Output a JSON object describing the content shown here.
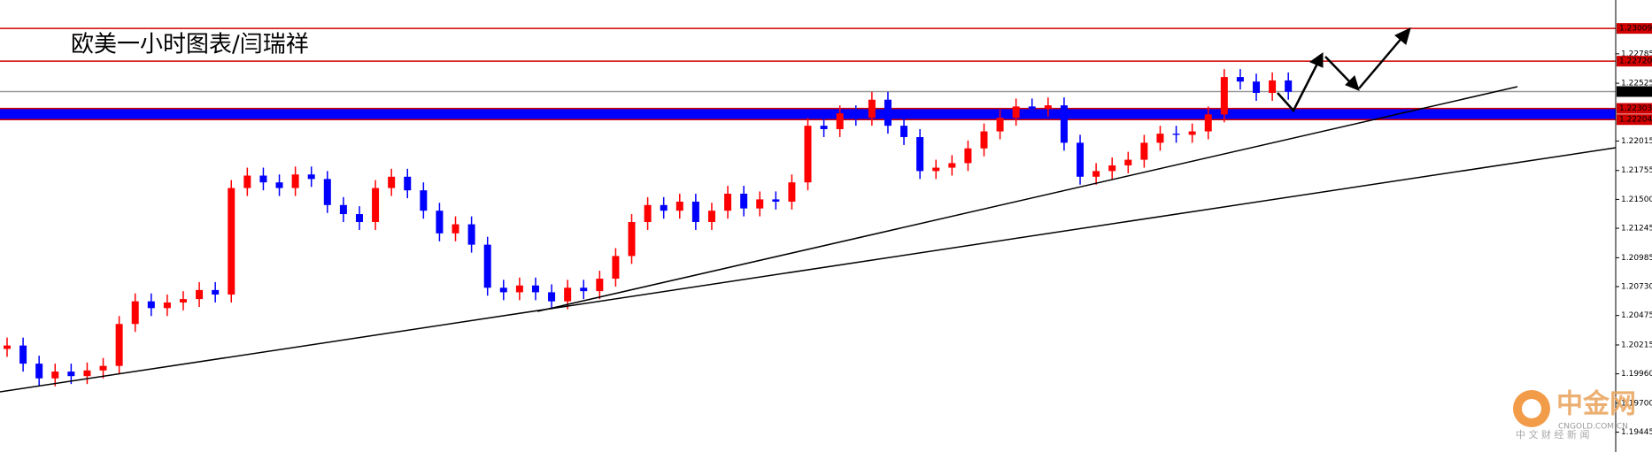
{
  "chart_data": {
    "type": "candlestick",
    "title": "欧美一小时图表/闫瑞祥",
    "up_color": "#ff0000",
    "down_color": "#0000ff",
    "zone_color": "#0000ff",
    "ylim": [
      1.1927,
      1.2326
    ],
    "yticks": [
      1.22785,
      1.22525,
      1.22015,
      1.21755,
      {
        "value": 1.215,
        "label": "1.21500"
      },
      1.21245,
      1.20985,
      {
        "value": 1.2073,
        "label": "1.20730"
      },
      1.20475,
      1.20215,
      {
        "value": 1.1996,
        "label": "1.19960"
      },
      {
        "value": 1.197,
        "label": "1.19700"
      },
      1.19445
    ],
    "levels": [
      {
        "value": 1.23009,
        "color": "#d00000"
      },
      {
        "value": 1.2272,
        "label": "1.22720",
        "color": "#d00000"
      },
      {
        "value": 1.22452,
        "color": "#000000"
      },
      {
        "value": 1.22303,
        "color": "#d00000"
      },
      {
        "value": 1.22204,
        "color": "#d00000"
      }
    ],
    "open": [
      1.2018,
      1.2021,
      1.2005,
      1.1992,
      1.1998,
      1.1994,
      1.1999,
      1.2003,
      1.204,
      1.206,
      1.2054,
      1.2059,
      1.2062,
      1.207,
      1.2066,
      1.216,
      1.2171,
      1.2165,
      1.216,
      1.2172,
      1.2168,
      1.2145,
      1.2137,
      1.213,
      1.216,
      1.217,
      1.2158,
      1.214,
      1.212,
      1.2128,
      1.211,
      1.2072,
      1.2068,
      1.2074,
      1.2068,
      1.206,
      1.2072,
      1.2069,
      1.208,
      1.21,
      1.213,
      1.2145,
      1.214,
      1.2148,
      1.213,
      1.214,
      1.2155,
      1.2142,
      1.215,
      1.2148,
      1.2165,
      1.2215,
      1.2212,
      1.2226,
      1.2222,
      1.2238,
      1.2215,
      1.2205,
      1.2175,
      1.2178,
      1.2182,
      1.2195,
      1.221,
      1.2222,
      1.2232,
      1.223,
      1.2233,
      1.22,
      1.217,
      1.2175,
      1.218,
      1.2185,
      1.22,
      1.2208,
      1.2207,
      1.221,
      1.2225,
      1.2258,
      1.2254,
      1.2244,
      1.2255
    ],
    "high": [
      1.2028,
      1.2028,
      1.2012,
      1.2005,
      1.2005,
      1.2006,
      1.201,
      1.2047,
      1.2067,
      1.2067,
      1.2066,
      1.2069,
      1.2077,
      1.2077,
      1.2167,
      1.2178,
      1.2178,
      1.2172,
      1.2179,
      1.2179,
      1.2175,
      1.2152,
      1.2144,
      1.2167,
      1.2177,
      1.2177,
      1.2165,
      1.2147,
      1.2135,
      1.2135,
      1.2117,
      1.2079,
      1.2081,
      1.2081,
      1.2075,
      1.2079,
      1.2079,
      1.2087,
      1.2107,
      1.2137,
      1.2152,
      1.2152,
      1.2155,
      1.2155,
      1.2147,
      1.2162,
      1.2162,
      1.2157,
      1.2157,
      1.2172,
      1.2222,
      1.2222,
      1.2233,
      1.2233,
      1.2245,
      1.2245,
      1.2222,
      1.2212,
      1.2185,
      1.2189,
      1.2202,
      1.2217,
      1.2229,
      1.2239,
      1.2239,
      1.224,
      1.224,
      1.2207,
      1.2182,
      1.2187,
      1.2192,
      1.2207,
      1.2215,
      1.2215,
      1.2217,
      1.2232,
      1.2265,
      1.2265,
      1.2261,
      1.2262,
      1.2262
    ],
    "low": [
      1.2011,
      1.1998,
      1.1985,
      1.1985,
      1.1987,
      1.1987,
      1.1992,
      1.1996,
      1.2033,
      1.2047,
      1.2047,
      1.2052,
      1.2055,
      1.2059,
      1.2059,
      1.2153,
      1.2158,
      1.2153,
      1.2153,
      1.2161,
      1.2138,
      1.213,
      1.2123,
      1.2123,
      1.2153,
      1.2151,
      1.2133,
      1.2113,
      1.2113,
      1.2103,
      1.2065,
      1.2061,
      1.2061,
      1.2061,
      1.2053,
      1.2053,
      1.2062,
      1.2062,
      1.2073,
      1.2093,
      1.2123,
      1.2133,
      1.2133,
      1.2123,
      1.2123,
      1.2133,
      1.2135,
      1.2135,
      1.2141,
      1.2141,
      1.2158,
      1.2205,
      1.2205,
      1.2215,
      1.2215,
      1.2208,
      1.2198,
      1.2168,
      1.2168,
      1.2171,
      1.2175,
      1.2188,
      1.2203,
      1.2215,
      1.2223,
      1.2223,
      1.2193,
      1.2163,
      1.2163,
      1.2168,
      1.2173,
      1.2178,
      1.2193,
      1.22,
      1.22,
      1.2203,
      1.2218,
      1.2247,
      1.2237,
      1.2237,
      1.2238
    ],
    "close": [
      1.2021,
      1.2005,
      1.1992,
      1.1998,
      1.1994,
      1.1999,
      1.2003,
      1.204,
      1.206,
      1.2054,
      1.2059,
      1.2062,
      1.207,
      1.2066,
      1.216,
      1.2171,
      1.2165,
      1.216,
      1.2172,
      1.2168,
      1.2145,
      1.2137,
      1.213,
      1.216,
      1.217,
      1.2158,
      1.214,
      1.212,
      1.2128,
      1.211,
      1.2072,
      1.2068,
      1.2074,
      1.2068,
      1.206,
      1.2072,
      1.2069,
      1.208,
      1.21,
      1.213,
      1.2145,
      1.214,
      1.2148,
      1.213,
      1.214,
      1.2155,
      1.2142,
      1.215,
      1.2148,
      1.2165,
      1.2215,
      1.2212,
      1.2226,
      1.2222,
      1.2238,
      1.2215,
      1.2205,
      1.2175,
      1.2178,
      1.2182,
      1.2195,
      1.221,
      1.2222,
      1.2232,
      1.223,
      1.2233,
      1.22,
      1.217,
      1.2175,
      1.218,
      1.2185,
      1.22,
      1.2208,
      1.2207,
      1.221,
      1.2225,
      1.2258,
      1.2254,
      1.2244,
      1.2255,
      1.2245
    ]
  },
  "watermark": {
    "name": "中金网",
    "domain": "CNGOLD.COM.CN",
    "tagline": "中 文 财 经 新 闻"
  }
}
